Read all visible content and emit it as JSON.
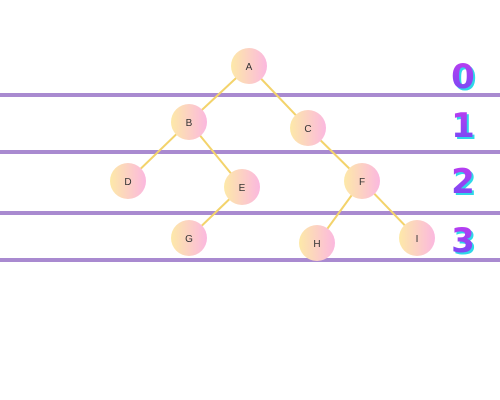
{
  "colors": {
    "band_line": "#a98ad0",
    "edge": "#f3d36b",
    "node_grad_start": "#fde9a8",
    "node_grad_end": "#fbb8df",
    "level_fill_start": "#c23bf0",
    "level_fill_end": "#6a4cf5",
    "level_shadow": "#2fd7e8"
  },
  "levels": [
    "0",
    "1",
    "2",
    "3"
  ],
  "nodes": [
    {
      "id": "A",
      "label": "A",
      "level": 0
    },
    {
      "id": "B",
      "label": "B",
      "level": 1
    },
    {
      "id": "C",
      "label": "C",
      "level": 1
    },
    {
      "id": "D",
      "label": "D",
      "level": 2
    },
    {
      "id": "E",
      "label": "E",
      "level": 2
    },
    {
      "id": "F",
      "label": "F",
      "level": 2
    },
    {
      "id": "G",
      "label": "G",
      "level": 3
    },
    {
      "id": "H",
      "label": "H",
      "level": 3
    },
    {
      "id": "I",
      "label": "I",
      "level": 3
    }
  ],
  "edges": [
    {
      "from": "A",
      "to": "B"
    },
    {
      "from": "A",
      "to": "C"
    },
    {
      "from": "B",
      "to": "D"
    },
    {
      "from": "B",
      "to": "E"
    },
    {
      "from": "E",
      "to": "G"
    },
    {
      "from": "C",
      "to": "F"
    },
    {
      "from": "F",
      "to": "H"
    },
    {
      "from": "F",
      "to": "I"
    }
  ]
}
